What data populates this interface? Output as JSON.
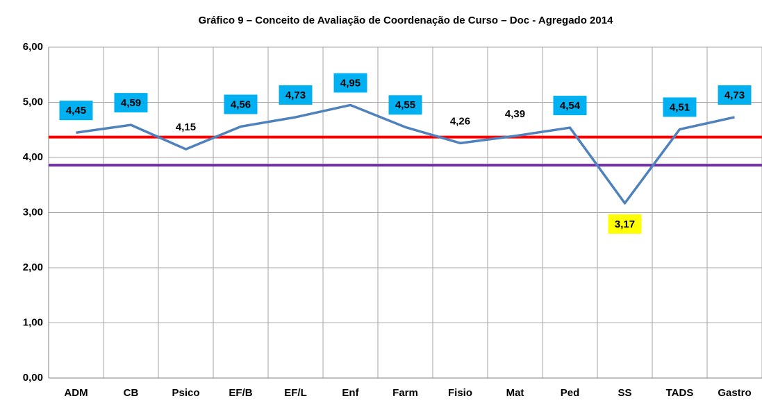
{
  "chart_data": {
    "type": "line",
    "title": "Gráfico 9 –  Conceito de Avaliação de Coordenação de Curso – Doc - Agregado 2014",
    "categories": [
      "ADM",
      "CB",
      "Psico",
      "EF/B",
      "EF/L",
      "Enf",
      "Farm",
      "Fisio",
      "Mat",
      "Ped",
      "SS",
      "TADS",
      "Gastro"
    ],
    "series": [
      {
        "color": "#4f81bd",
        "values": [
          4.45,
          4.59,
          4.15,
          4.56,
          4.73,
          4.95,
          4.55,
          4.26,
          4.39,
          4.54,
          3.17,
          4.51,
          4.73
        ],
        "value_labels": [
          "4,45",
          "4,59",
          "4,15",
          "4,56",
          "4,73",
          "4,95",
          "4,55",
          "4,26",
          "4,39",
          "4,54",
          "3,17",
          "4,51",
          "4,73"
        ],
        "value_label_colors": [
          "#00b0f0",
          "#00b0f0",
          null,
          "#00b0f0",
          "#00b0f0",
          "#00b0f0",
          "#00b0f0",
          null,
          null,
          "#00b0f0",
          "#ffff00",
          "#00b0f0",
          "#00b0f0"
        ],
        "value_label_positions": [
          "above",
          "above",
          "above",
          "above",
          "above",
          "above",
          "above",
          "above",
          "above",
          "above",
          "below",
          "above",
          "above"
        ]
      }
    ],
    "reference_lines": [
      {
        "value": 4.37,
        "color": "#ff0000"
      },
      {
        "value": 3.86,
        "color": "#7030a0"
      }
    ],
    "ylim": [
      0,
      6
    ],
    "yticks": [
      {
        "value": 0,
        "label": "0,00"
      },
      {
        "value": 1,
        "label": "1,00"
      },
      {
        "value": 2,
        "label": "2,00"
      },
      {
        "value": 3,
        "label": "3,00"
      },
      {
        "value": 4,
        "label": "4,00"
      },
      {
        "value": 5,
        "label": "5,00"
      },
      {
        "value": 6,
        "label": "6,00"
      }
    ],
    "grid": true
  }
}
